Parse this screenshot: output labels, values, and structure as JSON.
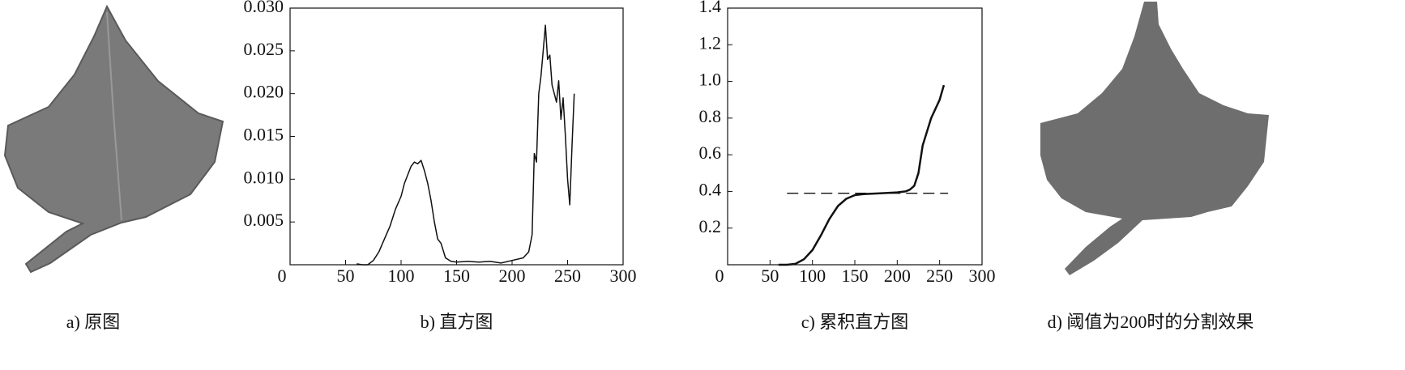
{
  "images": [
    {
      "caption": "a) 原图"
    },
    {
      "caption": "d) 阈值为200时的分割效果"
    }
  ],
  "chart_data": [
    {
      "type": "line",
      "title": "b) 直方图",
      "xlim": [
        0,
        300
      ],
      "xticks": [
        0,
        50,
        100,
        150,
        200,
        250,
        300
      ],
      "ylim": [
        0,
        0.03
      ],
      "yticks": [
        0.005,
        {
          "value": 0.01,
          "label": "0.010"
        },
        0.015,
        {
          "value": 0.02,
          "label": "0.020"
        },
        0.025,
        {
          "value": 0.03,
          "label": "0.030"
        }
      ],
      "series": [
        {
          "color": "#111111",
          "x": [
            60,
            65,
            70,
            75,
            80,
            85,
            90,
            95,
            100,
            103,
            106,
            109,
            112,
            115,
            118,
            121,
            124,
            127,
            130,
            133,
            136,
            140,
            145,
            150,
            160,
            170,
            180,
            190,
            200,
            210,
            215,
            218,
            220,
            222,
            224,
            226,
            228,
            230,
            232,
            234,
            236,
            238,
            240,
            242,
            244,
            246,
            248,
            250,
            252,
            254,
            256
          ],
          "values": [
            0.0001,
            0,
            0,
            0.0005,
            0.0015,
            0.003,
            0.0045,
            0.0065,
            0.008,
            0.0095,
            0.0105,
            0.0115,
            0.012,
            0.0118,
            0.0122,
            0.011,
            0.0095,
            0.0075,
            0.005,
            0.003,
            0.0025,
            0.0008,
            0.0004,
            0.0003,
            0.0004,
            0.0003,
            0.0004,
            0.0002,
            0.0005,
            0.0008,
            0.0015,
            0.0035,
            0.013,
            0.012,
            0.02,
            0.022,
            0.025,
            0.028,
            0.024,
            0.0245,
            0.021,
            0.02,
            0.019,
            0.0215,
            0.017,
            0.0195,
            0.015,
            0.01,
            0.007,
            0.014,
            0.02
          ]
        }
      ]
    },
    {
      "type": "line",
      "title": "c) 累积直方图",
      "xlim": [
        0,
        300
      ],
      "xticks": [
        0,
        50,
        100,
        150,
        200,
        250,
        300
      ],
      "ylim": [
        0,
        1.4
      ],
      "yticks": [
        0.2,
        0.4,
        0.6,
        0.8,
        {
          "value": 1,
          "label": "1.0"
        },
        1.2,
        1.4
      ],
      "hline": {
        "y": 0.39,
        "x": [
          70,
          260
        ]
      },
      "series": [
        {
          "color": "#111111",
          "x": [
            60,
            70,
            80,
            90,
            100,
            110,
            120,
            130,
            140,
            150,
            160,
            180,
            200,
            210,
            215,
            220,
            225,
            230,
            240,
            250,
            255
          ],
          "values": [
            0,
            0,
            0.005,
            0.03,
            0.08,
            0.16,
            0.25,
            0.32,
            0.36,
            0.38,
            0.385,
            0.39,
            0.395,
            0.4,
            0.41,
            0.43,
            0.5,
            0.65,
            0.8,
            0.9,
            0.98
          ]
        }
      ]
    }
  ]
}
